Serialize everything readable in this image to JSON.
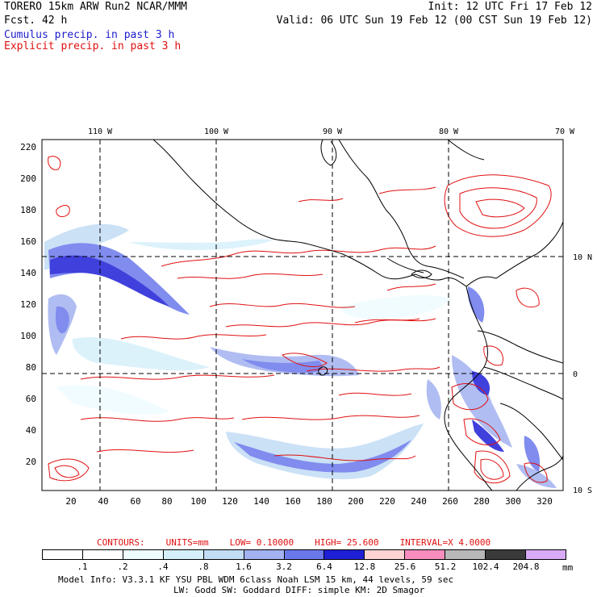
{
  "header": {
    "title": "TORERO  15km ARW   Run2    NCAR/MMM",
    "init": "Init: 12 UTC Fri 17 Feb 12",
    "fcst": "Fcst.   42 h",
    "valid": "Valid: 06 UTC Sun 19 Feb 12 (00 CST Sun 19 Feb 12)",
    "field_cumulus": "Cumulus precip. in past 3 h",
    "field_explicit": "Explicit precip. in past 3 h"
  },
  "map": {
    "top_lon_labels": [
      "110 W",
      "100 W",
      "90 W",
      "80 W",
      "70 W"
    ],
    "right_lat_labels": [
      "10 N",
      "0",
      "10 S"
    ],
    "y_ticks": [
      "220",
      "200",
      "180",
      "160",
      "140",
      "120",
      "100",
      "80",
      "60",
      "40",
      "20"
    ],
    "x_ticks": [
      "20",
      "40",
      "60",
      "80",
      "100",
      "120",
      "140",
      "160",
      "180",
      "200",
      "220",
      "240",
      "260",
      "280",
      "300",
      "320"
    ],
    "colors": {
      "cumulus": "#2a3fd8",
      "explicit_contour": "#e01010",
      "coastline": "#000000"
    }
  },
  "contours": {
    "label": "CONTOURS:",
    "units": "UNITS=mm",
    "low": "LOW= 0.10000",
    "high": "HIGH=  25.600",
    "interval": "INTERVAL=X  4.0000"
  },
  "legend": {
    "unit": "mm",
    "labels": [
      ".1",
      ".2",
      ".4",
      ".8",
      "1.6",
      "3.2",
      "6.4",
      "12.8",
      "25.6",
      "51.2",
      "102.4",
      "204.8"
    ],
    "colors": [
      "#ffffff",
      "#ffffff",
      "#eefcff",
      "#d6f0fb",
      "#c2dcf5",
      "#a3b2f0",
      "#6b78ec",
      "#1f1fd6",
      "#ffd3d3",
      "#f68dbd",
      "#b8b8b8",
      "#3a3a3a",
      "#d9aaf7"
    ]
  },
  "footer": {
    "line1": "Model Info: V3.3.1    KF    YSU PBL   WDM 6class  Noah LSM  15 km,   44 levels,   59 sec",
    "line2": "LW: Godd SW: Goddard DIFF: simple KM: 2D Smagor"
  }
}
